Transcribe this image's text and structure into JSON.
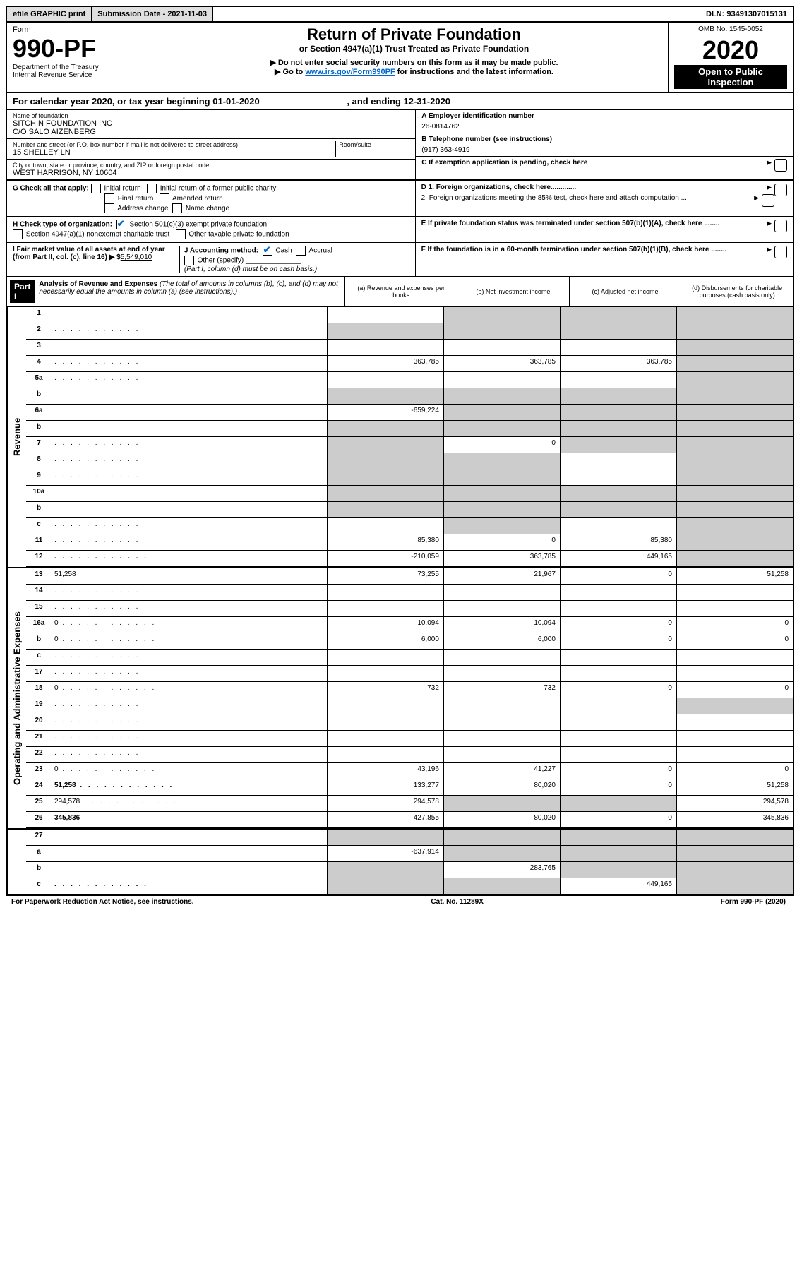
{
  "topbar": {
    "efile": "efile GRAPHIC print",
    "subm": "Submission Date - 2021-11-03",
    "dln": "DLN: 93491307015131"
  },
  "header": {
    "form_label": "Form",
    "form_num": "990-PF",
    "dept1": "Department of the Treasury",
    "dept2": "Internal Revenue Service",
    "title": "Return of Private Foundation",
    "subtitle": "or Section 4947(a)(1) Trust Treated as Private Foundation",
    "note1": "▶ Do not enter social security numbers on this form as it may be made public.",
    "note2_pre": "▶ Go to ",
    "note2_link": "www.irs.gov/Form990PF",
    "note2_post": " for instructions and the latest information.",
    "omb": "OMB No. 1545-0052",
    "year": "2020",
    "open": "Open to Public Inspection"
  },
  "cal_year": {
    "pre": "For calendar year 2020, or tax year beginning ",
    "begin": "01-01-2020",
    "mid": " , and ending ",
    "end": "12-31-2020"
  },
  "info": {
    "name_label": "Name of foundation",
    "name1": "SITCHIN FOUNDATION INC",
    "name2": "C/O SALO AIZENBERG",
    "addr_label": "Number and street (or P.O. box number if mail is not delivered to street address)",
    "addr": "15 SHELLEY LN",
    "room_label": "Room/suite",
    "city_label": "City or town, state or province, country, and ZIP or foreign postal code",
    "city": "WEST HARRISON, NY  10604",
    "a_label": "A Employer identification number",
    "a_val": "26-0814762",
    "b_label": "B Telephone number (see instructions)",
    "b_val": "(917) 363-4919",
    "c_label": "C If exemption application is pending, check here",
    "d1": "D 1. Foreign organizations, check here.............",
    "d2": "2. Foreign organizations meeting the 85% test, check here and attach computation ...",
    "e": "E  If private foundation status was terminated under section 507(b)(1)(A), check here ........",
    "f": "F  If the foundation is in a 60-month termination under section 507(b)(1)(B), check here ........"
  },
  "g": {
    "label": "G Check all that apply:",
    "initial": "Initial return",
    "initial_former": "Initial return of a former public charity",
    "final": "Final return",
    "amended": "Amended return",
    "addr_change": "Address change",
    "name_change": "Name change"
  },
  "h": {
    "label": "H Check type of organization:",
    "s501": "Section 501(c)(3) exempt private foundation",
    "s4947": "Section 4947(a)(1) nonexempt charitable trust",
    "other": "Other taxable private foundation"
  },
  "i": {
    "label": "I Fair market value of all assets at end of year (from Part II, col. (c), line 16) ▶ $",
    "val": "5,549,010"
  },
  "j": {
    "label": "J Accounting method:",
    "cash": "Cash",
    "accrual": "Accrual",
    "other": "Other (specify)",
    "note": "(Part I, column (d) must be on cash basis.)"
  },
  "part1": {
    "label": "Part I",
    "title": "Analysis of Revenue and Expenses",
    "sub": "(The total of amounts in columns (b), (c), and (d) may not necessarily equal the amounts in column (a) (see instructions).)",
    "col_a": "(a)    Revenue and expenses per books",
    "col_b": "(b)   Net investment income",
    "col_c": "(c)   Adjusted net income",
    "col_d": "(d)   Disbursements for charitable purposes (cash basis only)"
  },
  "sections": {
    "revenue": "Revenue",
    "expenses": "Operating and Administrative Expenses"
  },
  "lines": [
    {
      "n": "1",
      "d": "",
      "a": "",
      "b": "",
      "c": "",
      "sa": false,
      "sb": true,
      "sc": true,
      "sd": true
    },
    {
      "n": "2",
      "d": "",
      "a": "",
      "b": "",
      "c": "",
      "sa": true,
      "sb": true,
      "sc": true,
      "sd": true,
      "dotted": true
    },
    {
      "n": "3",
      "d": "",
      "a": "",
      "b": "",
      "c": "",
      "sa": false,
      "sb": false,
      "sc": false,
      "sd": true
    },
    {
      "n": "4",
      "d": "",
      "a": "363,785",
      "b": "363,785",
      "c": "363,785",
      "sa": false,
      "sb": false,
      "sc": false,
      "sd": true,
      "dotted": true
    },
    {
      "n": "5a",
      "d": "",
      "a": "",
      "b": "",
      "c": "",
      "sa": false,
      "sb": false,
      "sc": false,
      "sd": true,
      "dotted": true
    },
    {
      "n": "b",
      "d": "",
      "a": "",
      "b": "",
      "c": "",
      "sa": true,
      "sb": true,
      "sc": true,
      "sd": true
    },
    {
      "n": "6a",
      "d": "",
      "a": "-659,224",
      "b": "",
      "c": "",
      "sa": false,
      "sb": true,
      "sc": true,
      "sd": true
    },
    {
      "n": "b",
      "d": "",
      "a": "",
      "b": "",
      "c": "",
      "sa": true,
      "sb": true,
      "sc": true,
      "sd": true
    },
    {
      "n": "7",
      "d": "",
      "a": "",
      "b": "0",
      "c": "",
      "sa": true,
      "sb": false,
      "sc": true,
      "sd": true,
      "dotted": true
    },
    {
      "n": "8",
      "d": "",
      "a": "",
      "b": "",
      "c": "",
      "sa": true,
      "sb": true,
      "sc": false,
      "sd": true,
      "dotted": true
    },
    {
      "n": "9",
      "d": "",
      "a": "",
      "b": "",
      "c": "",
      "sa": true,
      "sb": true,
      "sc": false,
      "sd": true,
      "dotted": true
    },
    {
      "n": "10a",
      "d": "",
      "a": "",
      "b": "",
      "c": "",
      "sa": true,
      "sb": true,
      "sc": true,
      "sd": true
    },
    {
      "n": "b",
      "d": "",
      "a": "",
      "b": "",
      "c": "",
      "sa": true,
      "sb": true,
      "sc": true,
      "sd": true
    },
    {
      "n": "c",
      "d": "",
      "a": "",
      "b": "",
      "c": "",
      "sa": false,
      "sb": true,
      "sc": false,
      "sd": true,
      "dotted": true
    },
    {
      "n": "11",
      "d": "",
      "a": "85,380",
      "b": "0",
      "c": "85,380",
      "sa": false,
      "sb": false,
      "sc": false,
      "sd": true,
      "dotted": true
    },
    {
      "n": "12",
      "d": "",
      "a": "-210,059",
      "b": "363,785",
      "c": "449,165",
      "sa": false,
      "sb": false,
      "sc": false,
      "sd": true,
      "bold": true,
      "dotted": true
    }
  ],
  "exp_lines": [
    {
      "n": "13",
      "d": "51,258",
      "a": "73,255",
      "b": "21,967",
      "c": "0"
    },
    {
      "n": "14",
      "d": "",
      "a": "",
      "b": "",
      "c": "",
      "dotted": true
    },
    {
      "n": "15",
      "d": "",
      "a": "",
      "b": "",
      "c": "",
      "dotted": true
    },
    {
      "n": "16a",
      "d": "0",
      "a": "10,094",
      "b": "10,094",
      "c": "0",
      "dotted": true
    },
    {
      "n": "b",
      "d": "0",
      "a": "6,000",
      "b": "6,000",
      "c": "0",
      "dotted": true
    },
    {
      "n": "c",
      "d": "",
      "a": "",
      "b": "",
      "c": "",
      "dotted": true
    },
    {
      "n": "17",
      "d": "",
      "a": "",
      "b": "",
      "c": "",
      "dotted": true
    },
    {
      "n": "18",
      "d": "0",
      "a": "732",
      "b": "732",
      "c": "0",
      "dotted": true
    },
    {
      "n": "19",
      "d": "",
      "a": "",
      "b": "",
      "c": "",
      "sd": true,
      "dotted": true
    },
    {
      "n": "20",
      "d": "",
      "a": "",
      "b": "",
      "c": "",
      "dotted": true
    },
    {
      "n": "21",
      "d": "",
      "a": "",
      "b": "",
      "c": "",
      "dotted": true
    },
    {
      "n": "22",
      "d": "",
      "a": "",
      "b": "",
      "c": "",
      "dotted": true
    },
    {
      "n": "23",
      "d": "0",
      "a": "43,196",
      "b": "41,227",
      "c": "0",
      "dotted": true
    },
    {
      "n": "24",
      "d": "51,258",
      "a": "133,277",
      "b": "80,020",
      "c": "0",
      "bold": true,
      "dotted": true
    },
    {
      "n": "25",
      "d": "294,578",
      "a": "294,578",
      "b": "",
      "c": "",
      "sb": true,
      "sc": true,
      "dotted": true
    },
    {
      "n": "26",
      "d": "345,836",
      "a": "427,855",
      "b": "80,020",
      "c": "0",
      "bold": true
    }
  ],
  "bottom_lines": [
    {
      "n": "27",
      "d": "",
      "a": "",
      "b": "",
      "c": "",
      "sa": true,
      "sb": true,
      "sc": true,
      "sd": true
    },
    {
      "n": "a",
      "d": "",
      "a": "-637,914",
      "b": "",
      "c": "",
      "sb": true,
      "sc": true,
      "sd": true,
      "bold": true
    },
    {
      "n": "b",
      "d": "",
      "a": "",
      "b": "283,765",
      "c": "",
      "sa": true,
      "sc": true,
      "sd": true,
      "bold": true
    },
    {
      "n": "c",
      "d": "",
      "a": "",
      "b": "",
      "c": "449,165",
      "sa": true,
      "sb": true,
      "sd": true,
      "bold": true,
      "dotted": true
    }
  ],
  "footer": {
    "left": "For Paperwork Reduction Act Notice, see instructions.",
    "mid": "Cat. No. 11289X",
    "right": "Form 990-PF (2020)"
  }
}
